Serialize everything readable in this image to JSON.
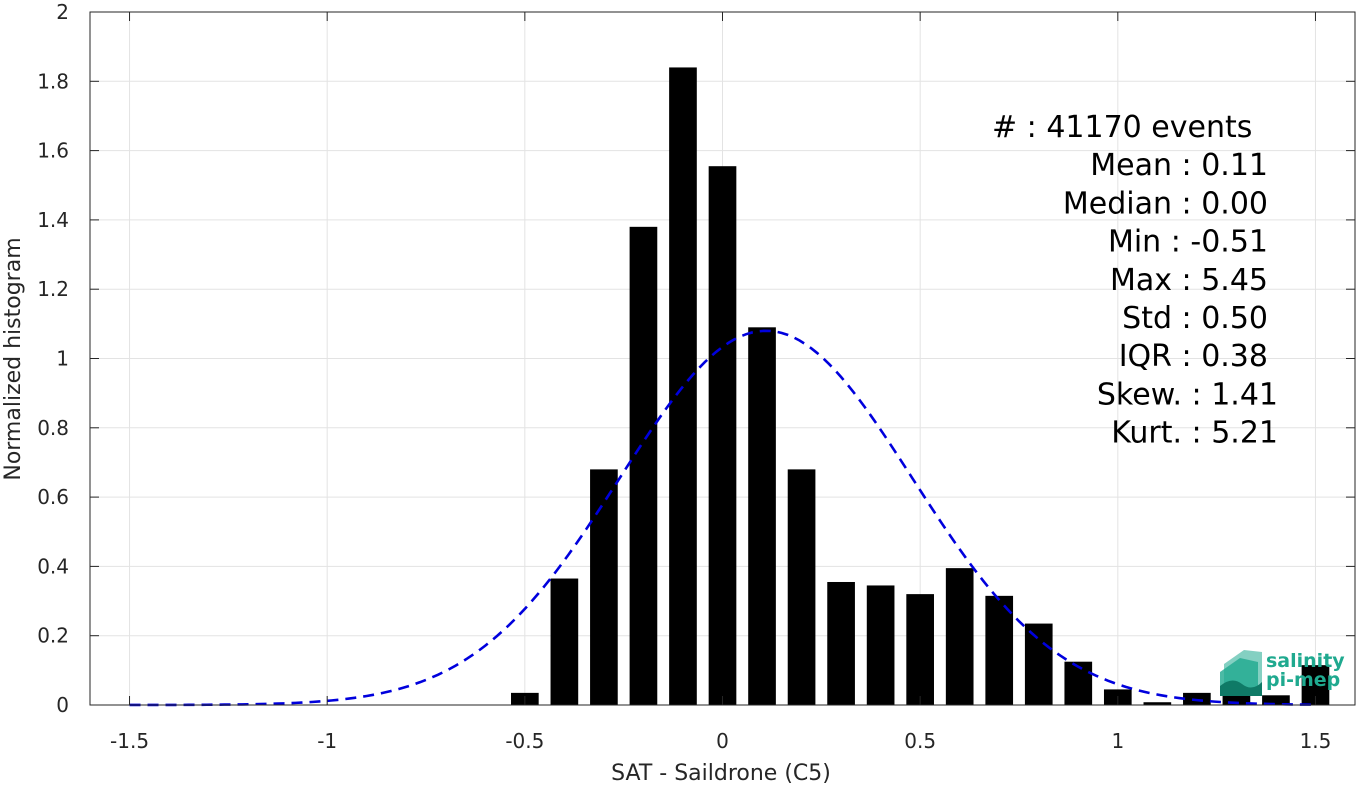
{
  "chart_data": {
    "type": "bar",
    "xlabel": "SAT - Saildrone (C5)",
    "ylabel": "Normalized histogram",
    "xlim": [
      -1.6,
      1.6
    ],
    "ylim": [
      0,
      2
    ],
    "grid": true,
    "xticks": [
      -1.5,
      -1,
      -0.5,
      0,
      0.5,
      1,
      1.5
    ],
    "xtick_labels": [
      "-1.5",
      "-1",
      "-0.5",
      "0",
      "0.5",
      "1",
      "1.5"
    ],
    "yticks": [
      0,
      0.2,
      0.4,
      0.6,
      0.8,
      1,
      1.2,
      1.4,
      1.6,
      1.8,
      2
    ],
    "ytick_labels": [
      "0",
      "0.2",
      "0.4",
      "0.6",
      "0.8",
      "1",
      "1.2",
      "1.4",
      "1.6",
      "1.8",
      "2"
    ],
    "bar_width": 0.07,
    "bar_color": "#000000",
    "bars": {
      "x": [
        -0.5,
        -0.4,
        -0.3,
        -0.2,
        -0.1,
        0.0,
        0.1,
        0.2,
        0.3,
        0.4,
        0.5,
        0.6,
        0.7,
        0.8,
        0.9,
        1.0,
        1.1,
        1.2,
        1.3,
        1.4,
        1.5
      ],
      "values": [
        0.035,
        0.365,
        0.68,
        1.38,
        1.84,
        1.555,
        1.09,
        0.68,
        0.355,
        0.345,
        0.32,
        0.395,
        0.315,
        0.235,
        0.125,
        0.045,
        0.008,
        0.035,
        0.028,
        0.028,
        0.115
      ]
    },
    "fit_curve": {
      "type": "gaussian",
      "mean": 0.11,
      "std": 0.37,
      "peak": 1.08,
      "x_range": [
        -1.5,
        1.5
      ],
      "color": "#0000dd",
      "style": "dashed"
    },
    "stats": [
      {
        "label": "#  : 41170 events",
        "anchor": "start"
      },
      {
        "label": "Mean : 0.11",
        "anchor": "end"
      },
      {
        "label": "Median : 0.00",
        "anchor": "end"
      },
      {
        "label": "Min : -0.51",
        "anchor": "end"
      },
      {
        "label": "Max : 5.45",
        "anchor": "end"
      },
      {
        "label": "Std : 0.50",
        "anchor": "end"
      },
      {
        "label": "IQR : 0.38",
        "anchor": "end"
      },
      {
        "label": "Skew. : 1.41",
        "anchor": "end"
      },
      {
        "label": "Kurt. : 5.21",
        "anchor": "end"
      }
    ]
  },
  "logo": {
    "line1": "salinity",
    "line2": "pi-mep",
    "color": "#1fa98f"
  }
}
